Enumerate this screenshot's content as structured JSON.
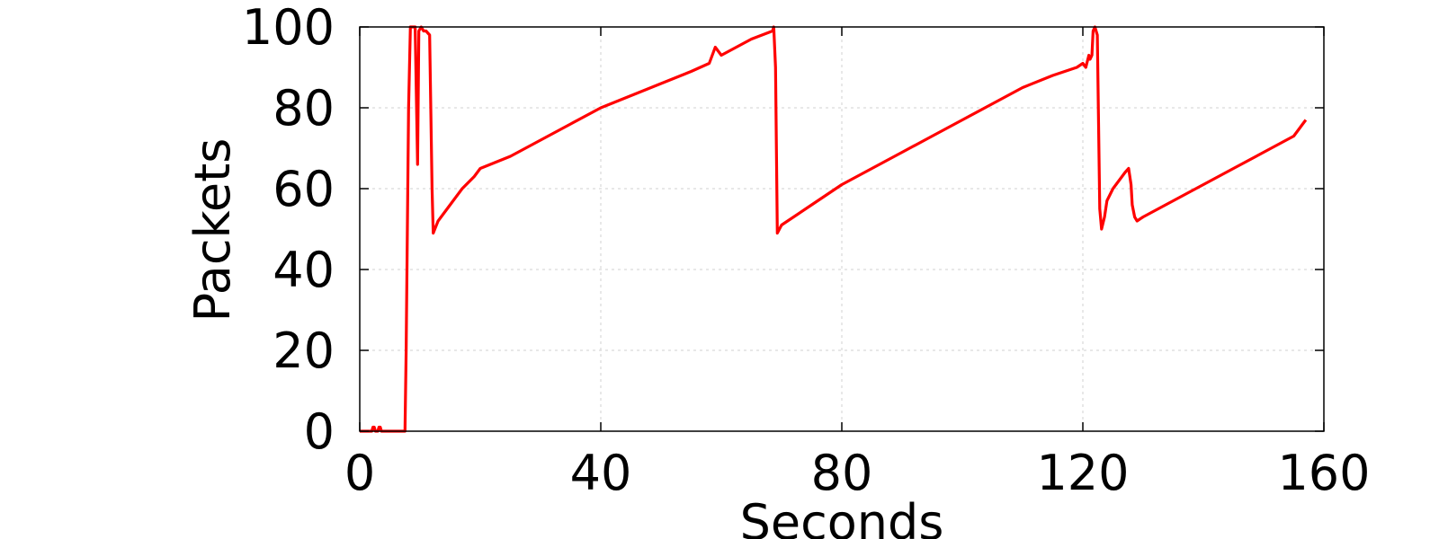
{
  "chart_data": {
    "type": "line",
    "xlabel": "Seconds",
    "ylabel": "Packets",
    "xlim": [
      0,
      160
    ],
    "ylim": [
      0,
      100
    ],
    "xticks": [
      "0",
      "40",
      "80",
      "120",
      "160"
    ],
    "yticks": [
      "0",
      "20",
      "40",
      "60",
      "80",
      "100"
    ],
    "grid": true,
    "series": [
      {
        "color": "#ff0000",
        "x": [
          0,
          2,
          2.2,
          2.4,
          2.6,
          3,
          3.2,
          3.4,
          3.6,
          7.5,
          7.7,
          8.1,
          8.4,
          9.2,
          9.6,
          9.8,
          10.2,
          10.6,
          11,
          11.6,
          12,
          12.2,
          13,
          15,
          17,
          19,
          20,
          25,
          30,
          35,
          40,
          45,
          50,
          55,
          58,
          59,
          60,
          65,
          68.5,
          68.7,
          69,
          69.3,
          70,
          75,
          80,
          85,
          90,
          95,
          100,
          105,
          110,
          115,
          119,
          120,
          120.5,
          121,
          121.2,
          121.5,
          121.7,
          122,
          122.4,
          122.8,
          123.1,
          123.6,
          124,
          125,
          126,
          127,
          127.6,
          128,
          128.2,
          128.6,
          129,
          130,
          135,
          140,
          145,
          150,
          155,
          156,
          156.5,
          157
        ],
        "y": [
          0,
          0,
          1,
          1,
          0,
          0,
          1,
          1,
          0,
          0,
          20,
          80,
          100,
          100,
          66,
          99,
          100,
          99,
          99,
          98,
          60,
          49,
          52,
          56,
          60,
          63,
          65,
          68,
          72,
          76,
          80,
          83,
          86,
          89,
          91,
          95,
          93,
          97,
          99,
          100,
          90,
          49,
          51,
          56,
          61,
          65,
          69,
          73,
          77,
          81,
          85,
          88,
          90,
          91,
          90,
          93,
          92,
          93,
          99,
          100,
          98,
          55,
          50,
          53,
          57,
          60,
          62,
          64,
          65,
          61,
          56,
          53,
          52,
          53,
          57,
          61,
          65,
          69,
          73,
          75,
          76,
          77
        ]
      }
    ]
  }
}
